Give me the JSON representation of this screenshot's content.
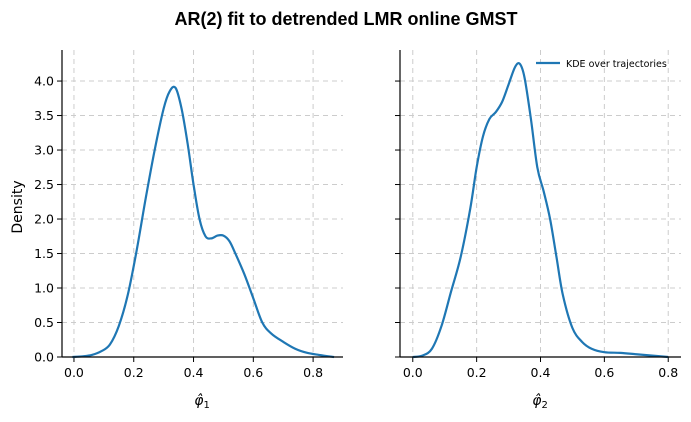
{
  "chart_data": {
    "title": "AR(2) fit to detrended LMR online GMST",
    "type": "line",
    "sharey": true,
    "line_color": "#1f77b4",
    "grid": true,
    "grid_style": "dashed",
    "panels": [
      {
        "xlabel_main": "φ̂",
        "xlabel_sub": "1",
        "ylabel": "Density",
        "xlim": [
          -0.04,
          0.9
        ],
        "ylim": [
          0,
          4.45
        ],
        "xticks": [
          0.0,
          0.2,
          0.4,
          0.6,
          0.8
        ],
        "xtick_labels": [
          "0.0",
          "0.2",
          "0.4",
          "0.6",
          "0.8"
        ],
        "yticks": [
          0,
          0.5,
          1.0,
          1.5,
          2.0,
          2.5,
          3.0,
          3.5,
          4.0
        ],
        "ytick_labels": [
          "0.0",
          "0.5",
          "1.0",
          "1.5",
          "2.0",
          "2.5",
          "3.0",
          "3.5",
          "4.0"
        ],
        "series": [
          {
            "x": [
              -0.005,
              0.03,
              0.06,
              0.09,
              0.12,
              0.15,
              0.18,
              0.21,
              0.24,
              0.27,
              0.3,
              0.32,
              0.34,
              0.36,
              0.38,
              0.4,
              0.42,
              0.44,
              0.46,
              0.48,
              0.5,
              0.52,
              0.54,
              0.57,
              0.6,
              0.63,
              0.66,
              0.7,
              0.74,
              0.78,
              0.82,
              0.87
            ],
            "y": [
              0.0,
              0.01,
              0.03,
              0.08,
              0.18,
              0.45,
              0.9,
              1.55,
              2.3,
              3.0,
              3.6,
              3.85,
              3.9,
              3.6,
              3.1,
              2.5,
              2.0,
              1.75,
              1.72,
              1.76,
              1.76,
              1.68,
              1.5,
              1.2,
              0.85,
              0.5,
              0.34,
              0.22,
              0.12,
              0.06,
              0.03,
              0.0
            ]
          }
        ]
      },
      {
        "xlabel_main": "φ̂",
        "xlabel_sub": "2",
        "xlim": [
          -0.04,
          0.84
        ],
        "ylim": [
          0,
          4.45
        ],
        "xticks": [
          0.0,
          0.2,
          0.4,
          0.6,
          0.8
        ],
        "xtick_labels": [
          "0.0",
          "0.2",
          "0.4",
          "0.6",
          "0.8"
        ],
        "legend": "KDE over trajectories",
        "legend_loc": "upper right",
        "series": [
          {
            "name": "KDE over trajectories",
            "x": [
              0.0,
              0.03,
              0.06,
              0.09,
              0.12,
              0.15,
              0.18,
              0.2,
              0.22,
              0.24,
              0.26,
              0.28,
              0.3,
              0.32,
              0.335,
              0.35,
              0.37,
              0.39,
              0.41,
              0.43,
              0.45,
              0.47,
              0.5,
              0.53,
              0.56,
              0.6,
              0.65,
              0.7,
              0.75,
              0.8
            ],
            "y": [
              0.0,
              0.02,
              0.12,
              0.45,
              0.95,
              1.45,
              2.15,
              2.75,
              3.2,
              3.45,
              3.55,
              3.7,
              3.95,
              4.2,
              4.25,
              4.05,
              3.45,
              2.75,
              2.4,
              2.0,
              1.45,
              0.9,
              0.42,
              0.22,
              0.12,
              0.07,
              0.06,
              0.04,
              0.02,
              0.0
            ]
          }
        ]
      }
    ]
  }
}
